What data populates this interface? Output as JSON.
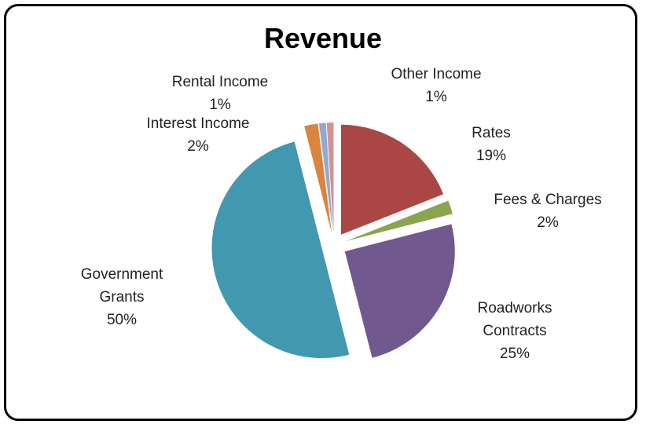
{
  "chart_data": {
    "type": "pie",
    "title": "Revenue",
    "categories": [
      "Rates",
      "Fees & Charges",
      "Roadworks Contracts",
      "Government Grants",
      "Interest Income",
      "Rental Income",
      "Other Income"
    ],
    "values": [
      19,
      2,
      25,
      50,
      2,
      1,
      1
    ],
    "value_labels": [
      "19%",
      "2%",
      "25%",
      "50%",
      "2%",
      "1%",
      "1%"
    ],
    "colors": [
      "#aa4643",
      "#89a54e",
      "#71588f",
      "#4198af",
      "#db843d",
      "#93a9cf",
      "#d19392"
    ]
  }
}
